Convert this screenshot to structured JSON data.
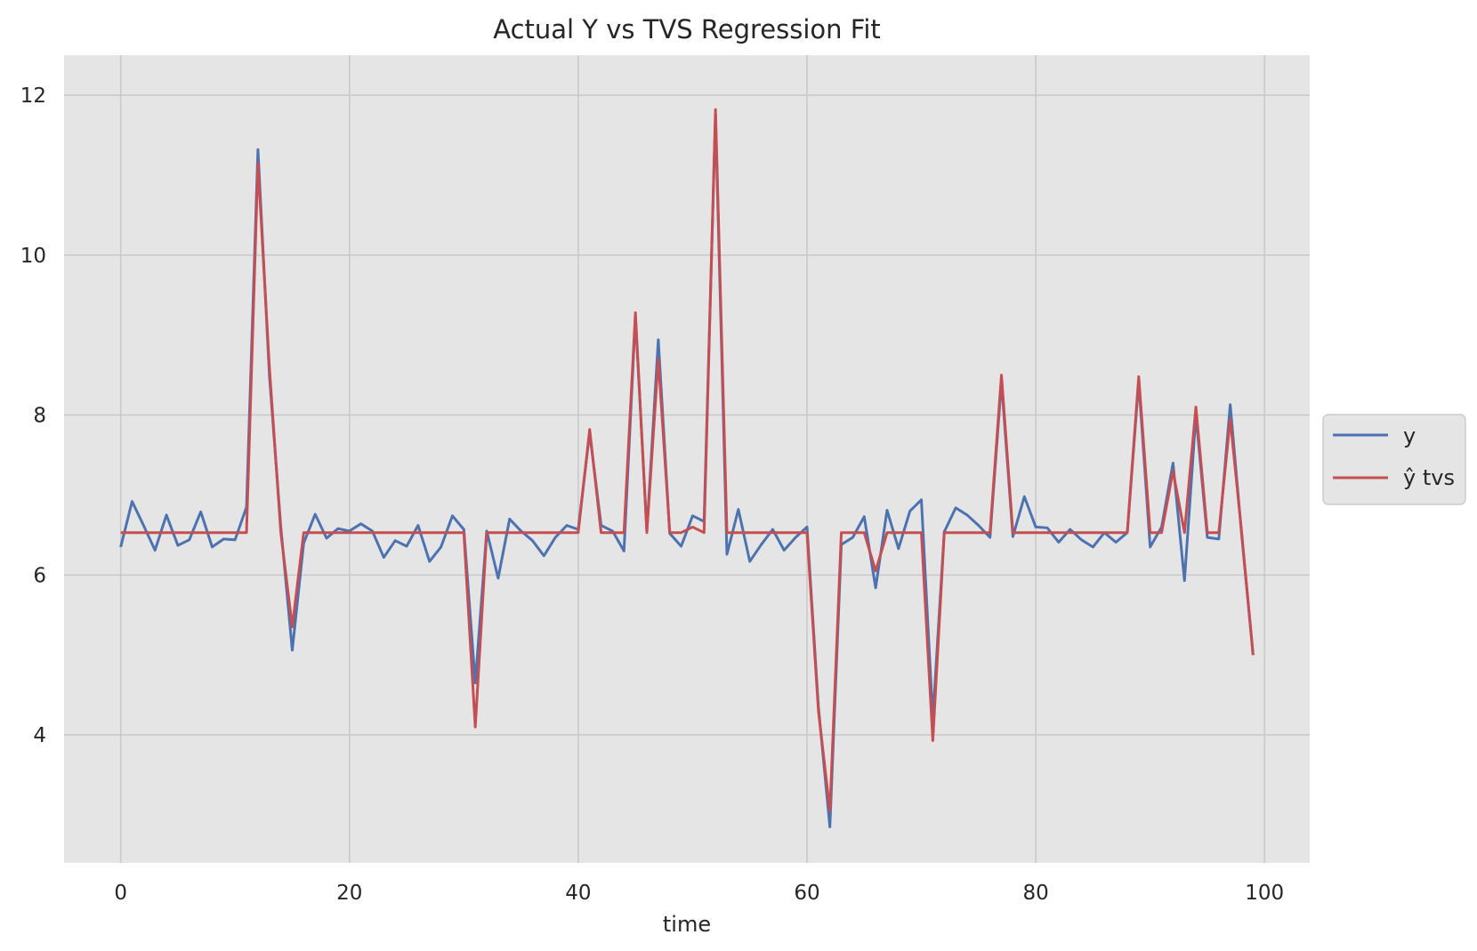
{
  "colors": {
    "plot_background": "#e5e5e5",
    "grid": "#c8c8c8",
    "y_series": "#4c72b0",
    "yhat_series": "#c44e52"
  },
  "chart_data": {
    "type": "line",
    "title": "Actual Y vs TVS Regression Fit",
    "xlabel": "time",
    "ylabel": "",
    "xlim": [
      -4.95,
      103.95
    ],
    "ylim": [
      2.4,
      12.5
    ],
    "xticks": [
      0,
      20,
      40,
      60,
      80,
      100
    ],
    "yticks": [
      4,
      6,
      8,
      10,
      12
    ],
    "grid": true,
    "legend_placement": "outside-right",
    "x": [
      0,
      1,
      2,
      3,
      4,
      5,
      6,
      7,
      8,
      9,
      10,
      11,
      12,
      13,
      14,
      15,
      16,
      17,
      18,
      19,
      20,
      21,
      22,
      23,
      24,
      25,
      26,
      27,
      28,
      29,
      30,
      31,
      32,
      33,
      34,
      35,
      36,
      37,
      38,
      39,
      40,
      41,
      42,
      43,
      44,
      45,
      46,
      47,
      48,
      49,
      50,
      51,
      52,
      53,
      54,
      55,
      56,
      57,
      58,
      59,
      60,
      61,
      62,
      63,
      64,
      65,
      66,
      67,
      68,
      69,
      70,
      71,
      72,
      73,
      74,
      75,
      76,
      77,
      78,
      79,
      80,
      81,
      82,
      83,
      84,
      85,
      86,
      87,
      88,
      89,
      90,
      91,
      92,
      93,
      94,
      95,
      96,
      97,
      98,
      99
    ],
    "series": [
      {
        "name": "y",
        "color": "#4c72b0",
        "values": [
          6.35,
          6.92,
          6.62,
          6.31,
          6.75,
          6.37,
          6.44,
          6.79,
          6.35,
          6.45,
          6.44,
          6.85,
          11.32,
          8.5,
          6.6,
          5.06,
          6.4,
          6.76,
          6.46,
          6.58,
          6.55,
          6.64,
          6.55,
          6.22,
          6.43,
          6.36,
          6.62,
          6.17,
          6.35,
          6.74,
          6.57,
          4.65,
          6.55,
          5.96,
          6.7,
          6.55,
          6.43,
          6.24,
          6.47,
          6.62,
          6.57,
          7.78,
          6.62,
          6.55,
          6.3,
          9.23,
          6.55,
          8.94,
          6.52,
          6.36,
          6.74,
          6.67,
          11.75,
          6.26,
          6.82,
          6.17,
          6.38,
          6.57,
          6.31,
          6.47,
          6.6,
          4.35,
          2.85,
          6.38,
          6.47,
          6.73,
          5.84,
          6.81,
          6.33,
          6.8,
          6.94,
          4.2,
          6.54,
          6.84,
          6.75,
          6.62,
          6.47,
          8.42,
          6.48,
          6.98,
          6.6,
          6.59,
          6.41,
          6.57,
          6.44,
          6.35,
          6.53,
          6.41,
          6.53,
          8.42,
          6.35,
          6.6,
          7.4,
          5.93,
          8.0,
          6.47,
          6.45,
          8.13,
          6.5,
          5.0
        ]
      },
      {
        "name": "ŷ tvs",
        "color": "#c44e52",
        "values": [
          6.53,
          6.53,
          6.53,
          6.53,
          6.53,
          6.53,
          6.53,
          6.53,
          6.53,
          6.53,
          6.53,
          6.53,
          11.15,
          8.6,
          6.53,
          5.35,
          6.53,
          6.53,
          6.53,
          6.53,
          6.53,
          6.53,
          6.53,
          6.53,
          6.53,
          6.53,
          6.53,
          6.53,
          6.53,
          6.53,
          6.53,
          4.1,
          6.53,
          6.53,
          6.53,
          6.53,
          6.53,
          6.53,
          6.53,
          6.53,
          6.53,
          7.82,
          6.53,
          6.53,
          6.53,
          9.28,
          6.53,
          8.7,
          6.53,
          6.53,
          6.6,
          6.53,
          11.82,
          6.53,
          6.53,
          6.53,
          6.53,
          6.53,
          6.53,
          6.53,
          6.53,
          4.3,
          3.05,
          6.53,
          6.53,
          6.53,
          6.05,
          6.53,
          6.53,
          6.53,
          6.53,
          3.93,
          6.53,
          6.53,
          6.53,
          6.53,
          6.53,
          8.5,
          6.53,
          6.53,
          6.53,
          6.53,
          6.53,
          6.53,
          6.53,
          6.53,
          6.53,
          6.53,
          6.53,
          8.48,
          6.53,
          6.53,
          7.3,
          6.53,
          8.1,
          6.53,
          6.53,
          7.95,
          6.53,
          5.0
        ]
      }
    ],
    "legend": {
      "entries": [
        "y",
        "ŷ tvs"
      ]
    }
  }
}
